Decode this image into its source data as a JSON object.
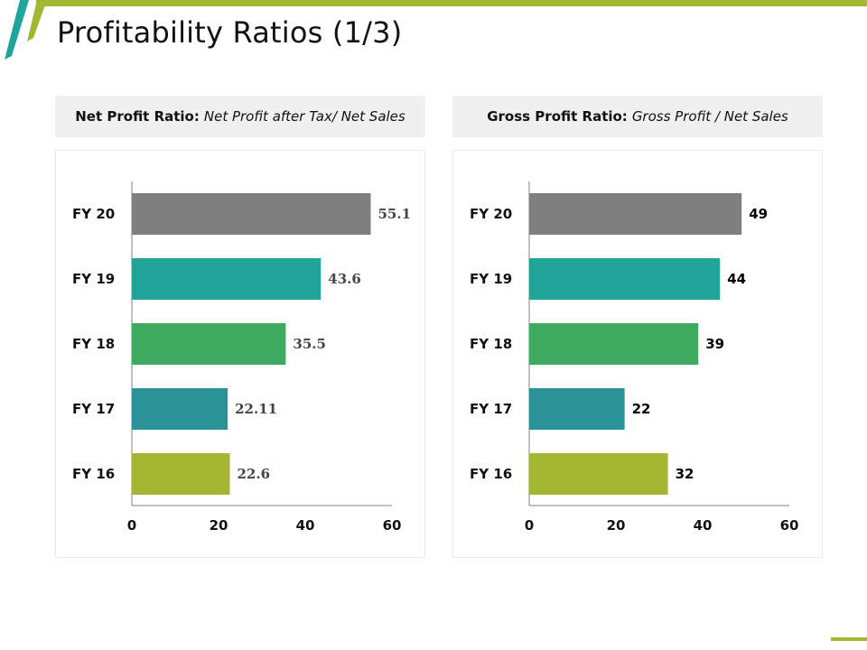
{
  "title": "Profitability Ratios (1/3)",
  "colors": {
    "accent_green": "#a3b733",
    "accent_teal": "#21a59a",
    "bar_colors": [
      "#7f7f7f",
      "#21a59a",
      "#3eaa5f",
      "#2b9397",
      "#a3b733"
    ]
  },
  "panels": [
    {
      "label_bold": "Net Profit Ratio:",
      "label_italic": "Net Profit after Tax/ Net Sales"
    },
    {
      "label_bold": "Gross Profit Ratio:",
      "label_italic": "Gross Profit / Net Sales"
    }
  ],
  "chart_data": [
    {
      "type": "bar",
      "orientation": "horizontal",
      "title": "Net Profit Ratio",
      "categories": [
        "FY 20",
        "FY 19",
        "FY 18",
        "FY 17",
        "FY 16"
      ],
      "values": [
        55.1,
        43.6,
        35.5,
        22.11,
        22.6
      ],
      "value_labels": [
        "55.1",
        "43.6",
        "35.5",
        "22.11",
        "22.6"
      ],
      "xlim": [
        0,
        60
      ],
      "xticks": [
        "0",
        "20",
        "40",
        "60"
      ],
      "grid": false,
      "legend": "none"
    },
    {
      "type": "bar",
      "orientation": "horizontal",
      "title": "Gross Profit Ratio",
      "categories": [
        "FY 20",
        "FY 19",
        "FY 18",
        "FY 17",
        "FY 16"
      ],
      "values": [
        49,
        44,
        39,
        22,
        32
      ],
      "value_labels": [
        "49",
        "44",
        "39",
        "22",
        "32"
      ],
      "xlim": [
        0,
        60
      ],
      "xticks": [
        "0",
        "20",
        "40",
        "60"
      ],
      "grid": false,
      "legend": "none"
    }
  ]
}
